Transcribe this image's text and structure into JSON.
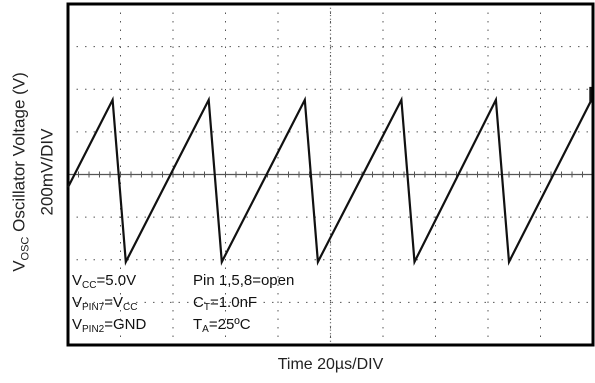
{
  "chart_data": {
    "type": "line",
    "xlabel": "Time 20µs/DIV",
    "ylabel_main": "Oscillator Voltage (V)",
    "ylabel_sym": "V",
    "ylabel_sub": "OSC",
    "ylabel_scale": "200mV/DIV",
    "x_range_div": [
      0,
      10
    ],
    "y_range_div": [
      -4,
      4
    ],
    "grid": true,
    "colors": {
      "trace": "#111111",
      "frame": "#000000",
      "grid": "#555555"
    },
    "series": [
      {
        "points": [
          [
            0,
            -0.3
          ],
          [
            0.85,
            1.75
          ],
          [
            1.1,
            -2.05
          ],
          [
            2.68,
            1.75
          ],
          [
            2.93,
            -2.05
          ],
          [
            4.51,
            1.75
          ],
          [
            4.76,
            -2.05
          ],
          [
            6.35,
            1.75
          ],
          [
            6.6,
            -2.05
          ],
          [
            8.15,
            1.75
          ],
          [
            8.4,
            -2.05
          ],
          [
            9.97,
            1.75
          ],
          [
            10.22,
            -2.05
          ]
        ]
      }
    ],
    "annotations": {
      "vcc": {
        "sym": "V",
        "sub": "CC",
        "text": "=5.0V"
      },
      "vpin7": {
        "sym": "V",
        "sub": "PIN7",
        "text": "=V",
        "sub2": "CC"
      },
      "vpin2": {
        "sym": "V",
        "sub": "PIN2",
        "text": "=GND"
      },
      "pins": {
        "text": "Pin 1,5,8=open"
      },
      "ct": {
        "sym": "C",
        "sub": "T",
        "text": "=1.0nF"
      },
      "ta": {
        "sym": "T",
        "sub": "A",
        "text": "=25ºC"
      }
    }
  }
}
